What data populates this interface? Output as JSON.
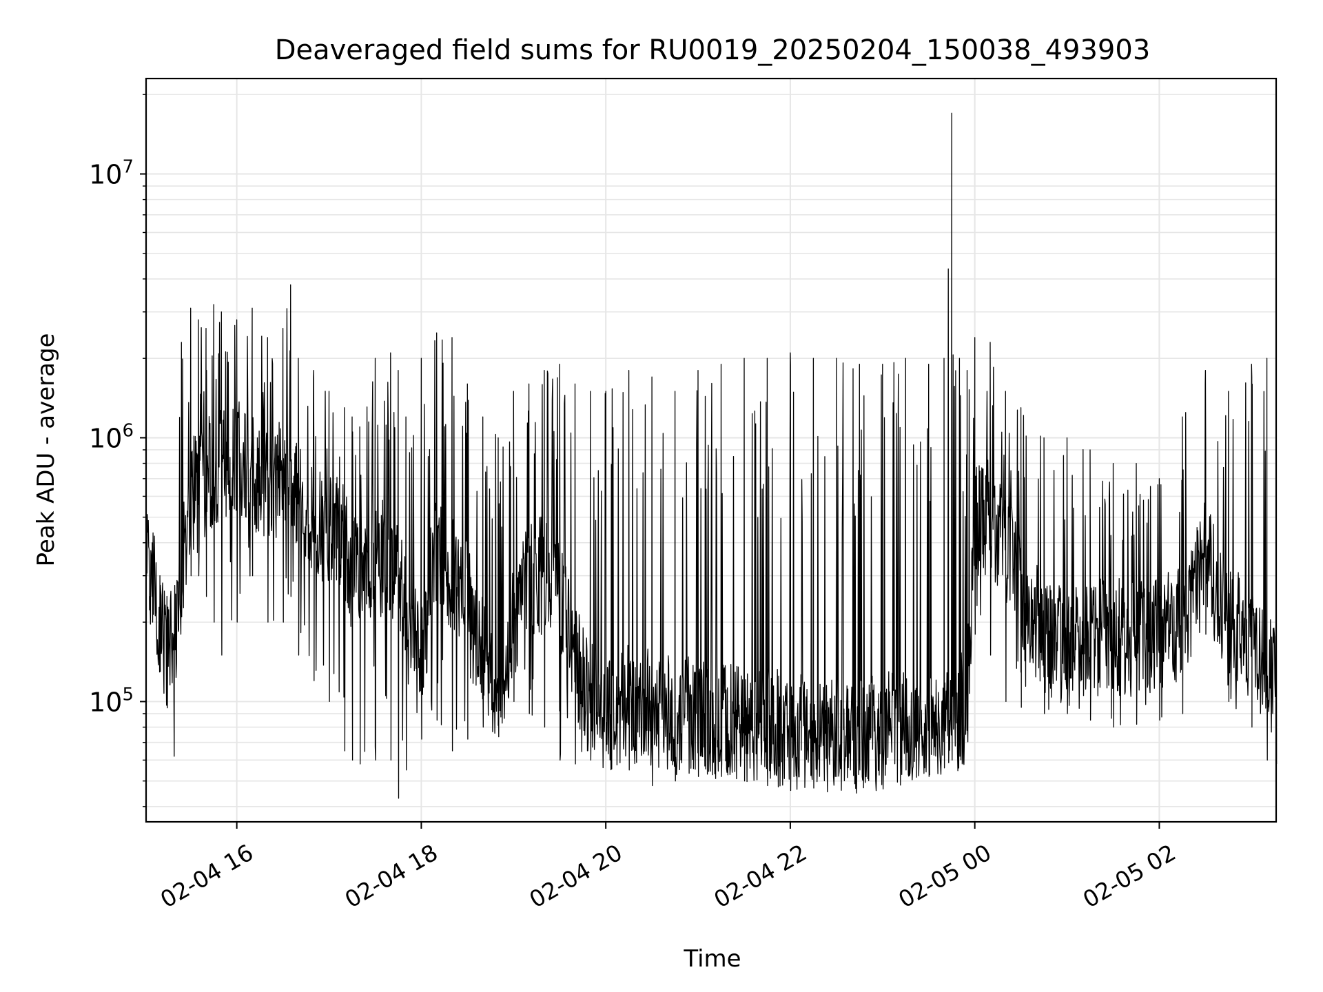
{
  "chart_data": {
    "type": "line",
    "title": "Deaveraged field sums for RU0019_20250204_150038_493903",
    "xlabel": "Time",
    "ylabel": "Peak ADU - average",
    "y_scale": "log",
    "grid": true,
    "line_color": "#000000",
    "grid_color": "#e6e6e6",
    "xlim": [
      "2025-02-04 15:01",
      "2025-02-05 03:16"
    ],
    "ylim": [
      35000,
      23000000
    ],
    "x_ticks": [
      {
        "value": "2025-02-04 16:00",
        "label": "02-04 16"
      },
      {
        "value": "2025-02-04 18:00",
        "label": "02-04 18"
      },
      {
        "value": "2025-02-04 20:00",
        "label": "02-04 20"
      },
      {
        "value": "2025-02-04 22:00",
        "label": "02-04 22"
      },
      {
        "value": "2025-02-05 00:00",
        "label": "02-05 00"
      },
      {
        "value": "2025-02-05 02:00",
        "label": "02-05 02"
      }
    ],
    "y_ticks": [
      {
        "value": 100000,
        "base": "10",
        "exp": "5"
      },
      {
        "value": 1000000,
        "base": "10",
        "exp": "6"
      },
      {
        "value": 10000000,
        "base": "10",
        "exp": "7"
      }
    ],
    "series": [
      {
        "x": [
          "2025-02-04 15:01",
          "2025-02-04 15:05",
          "2025-02-04 15:10",
          "2025-02-04 15:14",
          "2025-02-04 15:19",
          "2025-02-04 15:24",
          "2025-02-04 15:30",
          "2025-02-04 15:35",
          "2025-02-04 15:40",
          "2025-02-04 15:45",
          "2025-02-04 15:50",
          "2025-02-04 16:00",
          "2025-02-04 16:10",
          "2025-02-04 16:20",
          "2025-02-04 16:30",
          "2025-02-04 16:35",
          "2025-02-04 16:40",
          "2025-02-04 16:50",
          "2025-02-04 17:00",
          "2025-02-04 17:10",
          "2025-02-04 17:15",
          "2025-02-04 17:20",
          "2025-02-04 17:30",
          "2025-02-04 17:40",
          "2025-02-04 17:45",
          "2025-02-04 17:50",
          "2025-02-04 18:00",
          "2025-02-04 18:10",
          "2025-02-04 18:20",
          "2025-02-04 18:30",
          "2025-02-04 18:40",
          "2025-02-04 18:50",
          "2025-02-04 19:00",
          "2025-02-04 19:10",
          "2025-02-04 19:20",
          "2025-02-04 19:30",
          "2025-02-04 19:40",
          "2025-02-04 19:50",
          "2025-02-04 20:00",
          "2025-02-04 20:15",
          "2025-02-04 20:30",
          "2025-02-04 20:45",
          "2025-02-04 21:00",
          "2025-02-04 21:15",
          "2025-02-04 21:30",
          "2025-02-04 21:45",
          "2025-02-04 22:00",
          "2025-02-04 22:15",
          "2025-02-04 22:30",
          "2025-02-04 22:45",
          "2025-02-04 23:00",
          "2025-02-04 23:15",
          "2025-02-04 23:30",
          "2025-02-04 23:40",
          "2025-02-04 23:45",
          "2025-02-04 23:50",
          "2025-02-04 23:55",
          "2025-02-05 00:00",
          "2025-02-05 00:10",
          "2025-02-05 00:20",
          "2025-02-05 00:30",
          "2025-02-05 00:45",
          "2025-02-05 01:00",
          "2025-02-05 01:15",
          "2025-02-05 01:30",
          "2025-02-05 01:45",
          "2025-02-05 02:00",
          "2025-02-05 02:15",
          "2025-02-05 02:30",
          "2025-02-05 02:45",
          "2025-02-05 03:00",
          "2025-02-05 03:10",
          "2025-02-05 03:16"
        ],
        "baseline": [
          350000,
          300000,
          200000,
          150000,
          160000,
          300000,
          600000,
          650000,
          700000,
          750000,
          800000,
          850000,
          750000,
          700000,
          700000,
          700000,
          600000,
          500000,
          450000,
          400000,
          300000,
          300000,
          350000,
          350000,
          300000,
          200000,
          150000,
          400000,
          300000,
          250000,
          150000,
          100000,
          200000,
          300000,
          300000,
          250000,
          150000,
          100000,
          90000,
          100000,
          95000,
          90000,
          88000,
          85000,
          82000,
          80000,
          78000,
          76000,
          75000,
          75000,
          78000,
          80000,
          78000,
          80000,
          85000,
          90000,
          100000,
          500000,
          500000,
          400000,
          250000,
          180000,
          160000,
          170000,
          180000,
          170000,
          180000,
          200000,
          350000,
          200000,
          170000,
          150000,
          110000
        ],
        "spike_max": [
          450000,
          400000,
          300000,
          200000,
          180000,
          2300000,
          3100000,
          2800000,
          2600000,
          3200000,
          3000000,
          2800000,
          3100000,
          2400000,
          2600000,
          3800000,
          2000000,
          1800000,
          1500000,
          1300000,
          1200000,
          1100000,
          2000000,
          2100000,
          1800000,
          1200000,
          2000000,
          2500000,
          2400000,
          1600000,
          1200000,
          1000000,
          1500000,
          1600000,
          1800000,
          1900000,
          1600000,
          1500000,
          1500000,
          1800000,
          1700000,
          1500000,
          1800000,
          1900000,
          2000000,
          2000000,
          2100000,
          2000000,
          2000000,
          1900000,
          1900000,
          2000000,
          1900000,
          2000000,
          17000000,
          2000000,
          1800000,
          2400000,
          2300000,
          1500000,
          1300000,
          1000000,
          1000000,
          900000,
          800000,
          800000,
          700000,
          1200000,
          1800000,
          1500000,
          1900000,
          2000000,
          1800000
        ],
        "spike_min": [
          300000,
          200000,
          130000,
          100000,
          62000,
          250000,
          300000,
          300000,
          250000,
          200000,
          150000,
          200000,
          300000,
          200000,
          200000,
          250000,
          150000,
          120000,
          100000,
          65000,
          60000,
          58000,
          60000,
          60000,
          43000,
          55000,
          72000,
          85000,
          65000,
          72000,
          80000,
          90000,
          100000,
          90000,
          80000,
          60000,
          58000,
          60000,
          65000,
          55000,
          48000,
          50000,
          52000,
          52000,
          50000,
          48000,
          46000,
          47000,
          52000,
          55000,
          58000,
          55000,
          52000,
          56000,
          60000,
          62000,
          80000,
          180000,
          150000,
          100000,
          95000,
          90000,
          90000,
          85000,
          80000,
          82000,
          85000,
          90000,
          180000,
          100000,
          80000,
          60000,
          58000
        ]
      }
    ]
  }
}
